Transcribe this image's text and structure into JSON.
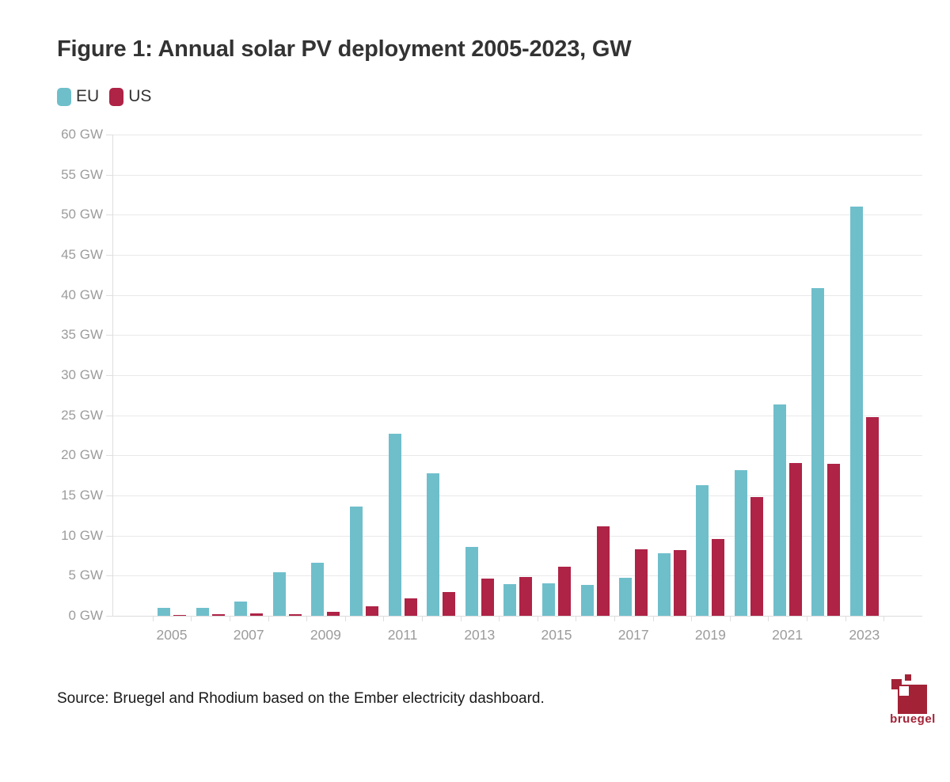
{
  "header": {
    "title": "Figure 1: Annual solar PV deployment 2005-2023, GW"
  },
  "legend": {
    "items": [
      {
        "label": "EU",
        "color": "#6fbfcb"
      },
      {
        "label": "US",
        "color": "#ae2346"
      }
    ]
  },
  "colors": {
    "eu_bar": "#6fbfcb",
    "us_bar": "#ae2346",
    "gridline": "#e9e9e9",
    "axis": "#dedede",
    "tick_label": "#9c9c9c",
    "title_text": "#333333",
    "logo_red": "#a32236"
  },
  "chart_data": {
    "type": "bar",
    "title": "Figure 1: Annual solar PV deployment 2005-2023, GW",
    "categories": [
      "2005",
      "2006",
      "2007",
      "2008",
      "2009",
      "2010",
      "2011",
      "2012",
      "2013",
      "2014",
      "2015",
      "2016",
      "2017",
      "2018",
      "2019",
      "2020",
      "2021",
      "2022",
      "2023"
    ],
    "series": [
      {
        "name": "EU",
        "color": "#6fbfcb",
        "values": [
          1.0,
          1.0,
          1.8,
          5.4,
          6.6,
          13.6,
          22.7,
          17.8,
          8.6,
          3.9,
          4.0,
          3.8,
          4.7,
          7.8,
          16.3,
          18.2,
          26.3,
          40.9,
          51.0
        ]
      },
      {
        "name": "US",
        "color": "#ae2346",
        "values": [
          0.1,
          0.2,
          0.3,
          0.2,
          0.5,
          1.2,
          2.2,
          3.0,
          4.6,
          4.8,
          6.1,
          11.2,
          8.3,
          8.2,
          9.6,
          14.8,
          19.0,
          18.9,
          24.8
        ]
      }
    ],
    "labeled_categories": [
      "2005",
      "2007",
      "2009",
      "2011",
      "2013",
      "2015",
      "2017",
      "2019",
      "2021",
      "2023"
    ],
    "y_ticks": [
      0,
      5,
      10,
      15,
      20,
      25,
      30,
      35,
      40,
      45,
      50,
      55,
      60
    ],
    "y_tick_unit": " GW",
    "ylim": [
      0,
      60
    ],
    "xlabel": "",
    "ylabel": "",
    "grid": true,
    "legend_position": "top-left"
  },
  "footer": {
    "source": "Source: Bruegel and Rhodium based on the Ember electricity dashboard.",
    "logo_text": "bruegel"
  }
}
